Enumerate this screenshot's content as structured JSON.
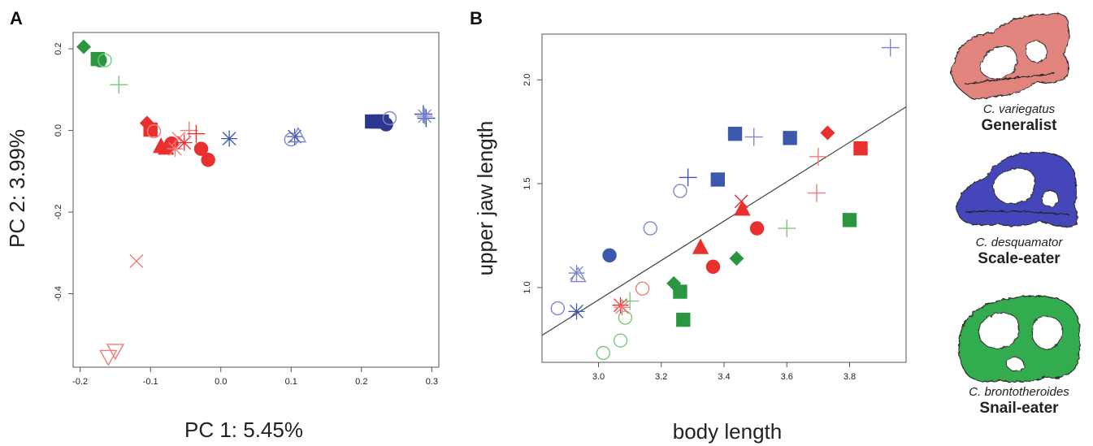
{
  "panels": {
    "a": {
      "letter": "A"
    },
    "b": {
      "letter": "B"
    }
  },
  "colors": {
    "generalist": "#e8302f",
    "generalist_light": "#f07d78",
    "scale_eater": "#3c58ad",
    "scale_eater_dark": "#2c3890",
    "scale_eater_light": "#7f88cc",
    "snail_eater": "#2a9640",
    "snail_eater_light": "#78c87a"
  },
  "species": [
    {
      "name": "C. variegatus",
      "role": "Generalist",
      "icon": "pink-fish-skull-icon",
      "color": "#e07e78"
    },
    {
      "name": "C. desquamator",
      "role": "Scale-eater",
      "icon": "blue-fish-skull-icon",
      "color": "#3b3db8"
    },
    {
      "name": "C. brontotheroides",
      "role": "Snail-eater",
      "icon": "green-fish-skull-icon",
      "color": "#2aa844"
    }
  ],
  "chart_data": [
    {
      "type": "scatter",
      "xlabel": "PC 1: 5.45%",
      "ylabel": "PC 2: 3.99%",
      "xlim": [
        -0.21,
        0.31
      ],
      "ylim": [
        -0.58,
        0.24
      ],
      "xticks": [
        -0.2,
        -0.1,
        0.0,
        0.1,
        0.2,
        0.3
      ],
      "xtick_labels": [
        "-0.2",
        "-0.1",
        "0.0",
        "0.1",
        "0.2",
        "0.3"
      ],
      "yticks": [
        -0.4,
        -0.2,
        0.0,
        0.2
      ],
      "ytick_labels": [
        "-0.4",
        "-0.2",
        "0.0",
        "0.2"
      ],
      "grid": false,
      "points": [
        {
          "x": -0.195,
          "y": 0.205,
          "shape": "diamond",
          "color": "#2a9640",
          "filled": true
        },
        {
          "x": -0.175,
          "y": 0.175,
          "shape": "square",
          "color": "#2a9640",
          "filled": true
        },
        {
          "x": -0.172,
          "y": 0.172,
          "shape": "circle",
          "color": "#2a9640",
          "filled": true
        },
        {
          "x": -0.165,
          "y": 0.172,
          "shape": "circle",
          "color": "#78c87a",
          "filled": false
        },
        {
          "x": -0.145,
          "y": 0.112,
          "shape": "plus",
          "color": "#78c87a",
          "filled": false
        },
        {
          "x": -0.105,
          "y": 0.018,
          "shape": "diamond",
          "color": "#e8302f",
          "filled": true
        },
        {
          "x": -0.1,
          "y": 0.002,
          "shape": "square",
          "color": "#e8302f",
          "filled": true
        },
        {
          "x": -0.095,
          "y": -0.002,
          "shape": "circle",
          "color": "#f07d78",
          "filled": false
        },
        {
          "x": -0.085,
          "y": -0.038,
          "shape": "triangle",
          "color": "#e8302f",
          "filled": true
        },
        {
          "x": -0.078,
          "y": -0.042,
          "shape": "triangle",
          "color": "#e8302f",
          "filled": true
        },
        {
          "x": -0.07,
          "y": -0.032,
          "shape": "circle",
          "color": "#e8302f",
          "filled": true
        },
        {
          "x": -0.065,
          "y": -0.045,
          "shape": "asterisk",
          "color": "#f07d78",
          "filled": false
        },
        {
          "x": -0.06,
          "y": -0.02,
          "shape": "cross",
          "color": "#f07d78",
          "filled": false
        },
        {
          "x": -0.052,
          "y": -0.03,
          "shape": "asterisk",
          "color": "#e8302f",
          "filled": false
        },
        {
          "x": -0.045,
          "y": 0.0,
          "shape": "plus",
          "color": "#f07d78",
          "filled": false
        },
        {
          "x": -0.035,
          "y": -0.008,
          "shape": "plus",
          "color": "#e8302f",
          "filled": false
        },
        {
          "x": -0.028,
          "y": -0.045,
          "shape": "circle",
          "color": "#e8302f",
          "filled": true
        },
        {
          "x": -0.018,
          "y": -0.072,
          "shape": "circle",
          "color": "#e8302f",
          "filled": true
        },
        {
          "x": 0.012,
          "y": -0.02,
          "shape": "asterisk",
          "color": "#3c58ad",
          "filled": false
        },
        {
          "x": 0.1,
          "y": -0.022,
          "shape": "circle",
          "color": "#7f88cc",
          "filled": false
        },
        {
          "x": 0.105,
          "y": -0.015,
          "shape": "asterisk",
          "color": "#3c58ad",
          "filled": false
        },
        {
          "x": 0.11,
          "y": -0.012,
          "shape": "triangle",
          "color": "#7f88cc",
          "filled": false
        },
        {
          "x": 0.215,
          "y": 0.022,
          "shape": "square",
          "color": "#2c3890",
          "filled": true
        },
        {
          "x": 0.222,
          "y": 0.022,
          "shape": "square",
          "color": "#2c3890",
          "filled": true
        },
        {
          "x": 0.229,
          "y": 0.022,
          "shape": "square",
          "color": "#2c3890",
          "filled": true
        },
        {
          "x": 0.235,
          "y": 0.015,
          "shape": "circle",
          "color": "#2c3890",
          "filled": true
        },
        {
          "x": 0.24,
          "y": 0.03,
          "shape": "circle",
          "color": "#7f88cc",
          "filled": false
        },
        {
          "x": 0.288,
          "y": 0.04,
          "shape": "plus",
          "color": "#3c58ad",
          "filled": false
        },
        {
          "x": 0.292,
          "y": 0.03,
          "shape": "plus",
          "color": "#3c58ad",
          "filled": false
        },
        {
          "x": 0.29,
          "y": 0.035,
          "shape": "asterisk",
          "color": "#7f88cc",
          "filled": false
        },
        {
          "x": -0.12,
          "y": -0.32,
          "shape": "cross",
          "color": "#f07d78",
          "filled": false
        },
        {
          "x": -0.15,
          "y": -0.54,
          "shape": "triangle-down",
          "color": "#f07d78",
          "filled": false
        },
        {
          "x": -0.16,
          "y": -0.555,
          "shape": "triangle-down",
          "color": "#f07d78",
          "filled": false
        }
      ]
    },
    {
      "type": "scatter",
      "xlabel": "body length",
      "ylabel": "upper jaw length",
      "xlim": [
        2.82,
        3.98
      ],
      "ylim": [
        0.64,
        2.22
      ],
      "xticks": [
        3.0,
        3.2,
        3.4,
        3.6,
        3.8
      ],
      "xtick_labels": [
        "3.0",
        "3.2",
        "3.4",
        "3.6",
        "3.8"
      ],
      "yticks": [
        1.0,
        1.5,
        2.0
      ],
      "ytick_labels": [
        "1.0",
        "1.5",
        "2.0"
      ],
      "grid": false,
      "regression_line": {
        "x1": 2.82,
        "y1": 0.77,
        "x2": 3.98,
        "y2": 1.87
      },
      "points": [
        {
          "x": 2.87,
          "y": 0.9,
          "shape": "circle",
          "color": "#7f88cc",
          "filled": false
        },
        {
          "x": 2.93,
          "y": 0.885,
          "shape": "asterisk",
          "color": "#3c58ad",
          "filled": false
        },
        {
          "x": 2.93,
          "y": 1.07,
          "shape": "asterisk",
          "color": "#7f88cc",
          "filled": false
        },
        {
          "x": 2.935,
          "y": 1.06,
          "shape": "triangle",
          "color": "#7f88cc",
          "filled": false
        },
        {
          "x": 3.035,
          "y": 1.155,
          "shape": "circle",
          "color": "#3c58ad",
          "filled": true
        },
        {
          "x": 3.015,
          "y": 0.685,
          "shape": "circle",
          "color": "#78c87a",
          "filled": false
        },
        {
          "x": 3.07,
          "y": 0.745,
          "shape": "circle",
          "color": "#78c87a",
          "filled": false
        },
        {
          "x": 3.085,
          "y": 0.855,
          "shape": "circle",
          "color": "#78c87a",
          "filled": false
        },
        {
          "x": 3.07,
          "y": 0.915,
          "shape": "asterisk",
          "color": "#e8302f",
          "filled": false
        },
        {
          "x": 3.075,
          "y": 0.905,
          "shape": "asterisk",
          "color": "#f07d78",
          "filled": false
        },
        {
          "x": 3.1,
          "y": 0.935,
          "shape": "plus",
          "color": "#78c87a",
          "filled": false
        },
        {
          "x": 3.14,
          "y": 0.995,
          "shape": "circle",
          "color": "#f07d78",
          "filled": false
        },
        {
          "x": 3.165,
          "y": 1.285,
          "shape": "circle",
          "color": "#7f88cc",
          "filled": false
        },
        {
          "x": 3.24,
          "y": 1.02,
          "shape": "diamond",
          "color": "#2a9640",
          "filled": true
        },
        {
          "x": 3.26,
          "y": 0.98,
          "shape": "square",
          "color": "#2a9640",
          "filled": true
        },
        {
          "x": 3.27,
          "y": 0.845,
          "shape": "square",
          "color": "#2a9640",
          "filled": true
        },
        {
          "x": 3.26,
          "y": 1.465,
          "shape": "circle",
          "color": "#7f88cc",
          "filled": false
        },
        {
          "x": 3.285,
          "y": 1.53,
          "shape": "plus",
          "color": "#3c58ad",
          "filled": false
        },
        {
          "x": 3.325,
          "y": 1.195,
          "shape": "triangle",
          "color": "#e8302f",
          "filled": true
        },
        {
          "x": 3.365,
          "y": 1.1,
          "shape": "circle",
          "color": "#e8302f",
          "filled": true
        },
        {
          "x": 3.38,
          "y": 1.52,
          "shape": "square",
          "color": "#3c58ad",
          "filled": true
        },
        {
          "x": 3.435,
          "y": 1.74,
          "shape": "square",
          "color": "#3c58ad",
          "filled": true
        },
        {
          "x": 3.44,
          "y": 1.14,
          "shape": "diamond",
          "color": "#2a9640",
          "filled": true
        },
        {
          "x": 3.455,
          "y": 1.415,
          "shape": "cross",
          "color": "#e8302f",
          "filled": false
        },
        {
          "x": 3.458,
          "y": 1.38,
          "shape": "triangle",
          "color": "#e8302f",
          "filled": true
        },
        {
          "x": 3.495,
          "y": 1.725,
          "shape": "plus",
          "color": "#7f88cc",
          "filled": false
        },
        {
          "x": 3.505,
          "y": 1.285,
          "shape": "circle",
          "color": "#e8302f",
          "filled": true
        },
        {
          "x": 3.6,
          "y": 1.285,
          "shape": "plus",
          "color": "#78c87a",
          "filled": false
        },
        {
          "x": 3.61,
          "y": 1.72,
          "shape": "square",
          "color": "#3c58ad",
          "filled": true
        },
        {
          "x": 3.695,
          "y": 1.455,
          "shape": "plus",
          "color": "#f07d78",
          "filled": false
        },
        {
          "x": 3.7,
          "y": 1.63,
          "shape": "plus",
          "color": "#f07d78",
          "filled": false
        },
        {
          "x": 3.73,
          "y": 1.745,
          "shape": "diamond",
          "color": "#e8302f",
          "filled": true
        },
        {
          "x": 3.8,
          "y": 1.325,
          "shape": "square",
          "color": "#2a9640",
          "filled": true
        },
        {
          "x": 3.835,
          "y": 1.67,
          "shape": "square",
          "color": "#e8302f",
          "filled": true
        },
        {
          "x": 3.93,
          "y": 2.155,
          "shape": "plus",
          "color": "#7f88cc",
          "filled": false
        }
      ]
    }
  ]
}
